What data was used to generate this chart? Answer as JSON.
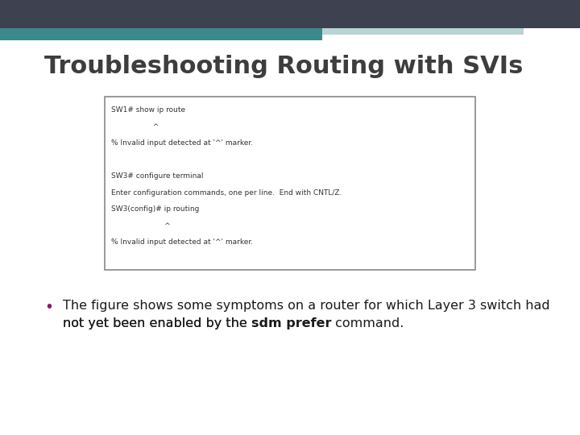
{
  "title": "Troubleshooting Routing with SVIs",
  "title_color": "#3d3d3d",
  "title_fontsize": 22,
  "bg_color": "#ffffff",
  "header_dark": "#3d4150",
  "header_teal": "#3a8a8a",
  "header_light_teal": "#b8d4d4",
  "terminal_lines": [
    "SW1# show ip route",
    "                  ^",
    "% Invalid input detected at '^' marker.",
    "",
    "SW3# configure terminal",
    "Enter configuration commands, one per line.  End with CNTL/Z.",
    "SW3(config)# ip routing",
    "                       ^",
    "% Invalid input detected at '^' marker."
  ],
  "terminal_font_size": 6.5,
  "terminal_bg": "#ffffff",
  "terminal_border": "#888888",
  "bullet_color": "#8b1a6b",
  "bullet_fontsize": 11.5,
  "line1": "The figure shows some symptoms on a router for which Layer 3 switch had",
  "line2_pre": "not yet been enabled by the ",
  "line2_bold": "sdm prefer",
  "line2_post": " command."
}
